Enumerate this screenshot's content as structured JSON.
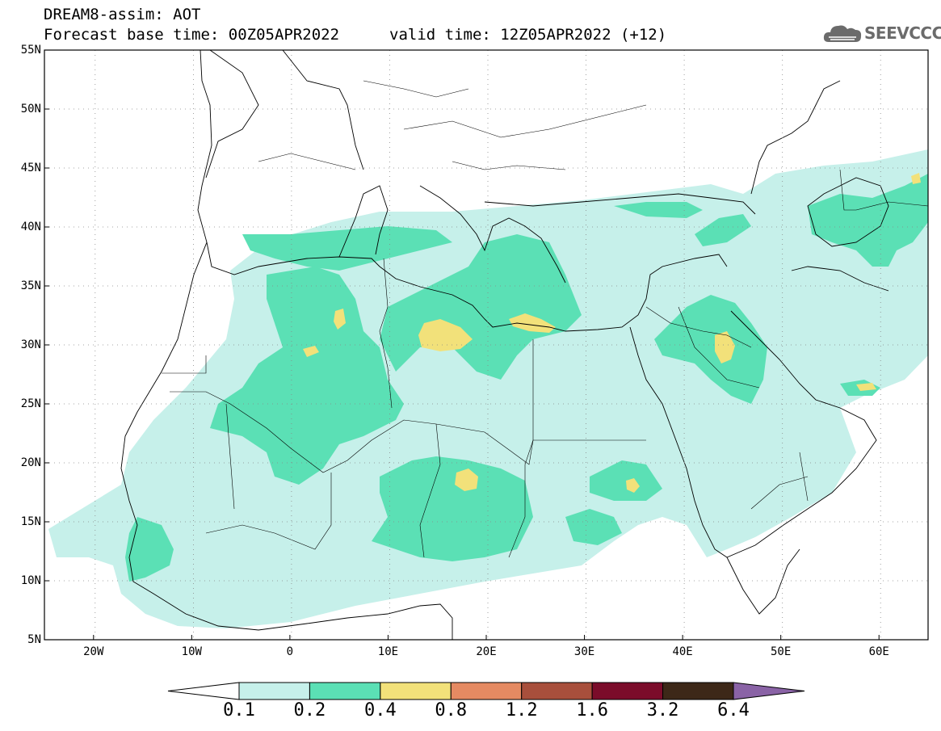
{
  "title": {
    "line1": "DREAM8-assim: AOT",
    "line2": "Forecast base time: 00Z05APR2022",
    "valid": "valid time: 12Z05APR2022 (+12)"
  },
  "logo": {
    "text": "SEEVCCC",
    "icon": "cloud-icon"
  },
  "axes": {
    "lat_labels": [
      "55N",
      "50N",
      "45N",
      "40N",
      "35N",
      "30N",
      "25N",
      "20N",
      "15N",
      "10N",
      "5N"
    ],
    "lon_labels": [
      "20W",
      "10W",
      "0",
      "10E",
      "20E",
      "30E",
      "40E",
      "50E",
      "60E"
    ],
    "lat_range": [
      5,
      55
    ],
    "lon_range": [
      -25,
      65
    ],
    "grid": "dotted"
  },
  "legend": {
    "levels": [
      "0.1",
      "0.2",
      "0.4",
      "0.8",
      "1.2",
      "1.6",
      "3.2",
      "6.4"
    ],
    "colors": [
      "#ffffff",
      "#c6f0ea",
      "#5be0b5",
      "#f2e17a",
      "#e58a62",
      "#a84f3c",
      "#7b0c2a",
      "#3d2818",
      "#8a63a6"
    ]
  }
}
